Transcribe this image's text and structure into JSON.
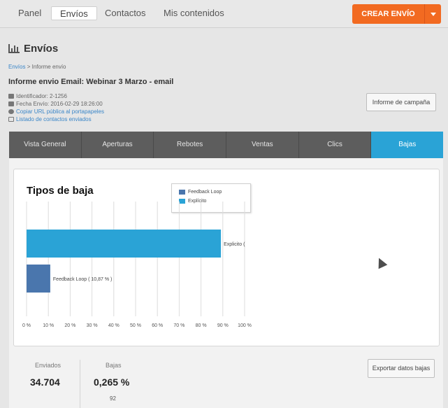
{
  "nav": {
    "items": [
      {
        "label": "Panel"
      },
      {
        "label": "Envíos"
      },
      {
        "label": "Contactos"
      },
      {
        "label": "Mis contenidos"
      }
    ],
    "create_label": "CREAR ENVÍO"
  },
  "header": {
    "title": "Envíos",
    "breadcrumb_link": "Envíos",
    "breadcrumb_sep": " > ",
    "breadcrumb_current": "Informe envío"
  },
  "report": {
    "title": "Informe envio Email: Webinar 3 Marzo - email",
    "identifier": "Identificador: 2-1256",
    "send_date": "Fecha Envío: 2016-02-29 18:26:00",
    "copy_url": "Copiar URL pública al portapapeles",
    "contact_list": "Listado de contactos enviados",
    "campaign_button": "Informe de campaña"
  },
  "tabs": [
    {
      "label": "Vista General"
    },
    {
      "label": "Aperturas"
    },
    {
      "label": "Rebotes"
    },
    {
      "label": "Ventas"
    },
    {
      "label": "Clics"
    },
    {
      "label": "Bajas"
    }
  ],
  "colors": {
    "accent": "#f26a21",
    "tab_active": "#2aa3d6",
    "tab_bg": "#5d5d5d",
    "explicit": "#2aa3d6",
    "feedback": "#4a76ad"
  },
  "chart_data": {
    "type": "bar",
    "orientation": "horizontal",
    "title": "Tipos de baja",
    "legend": [
      {
        "name": "Feedback Loop",
        "color": "#4a76ad"
      },
      {
        "name": "Explícito",
        "color": "#2aa3d6"
      }
    ],
    "categories": [
      "Explícito",
      "Feedback Loop"
    ],
    "values": [
      89.13,
      10.87
    ],
    "bar_labels": [
      "Explicito (",
      "Feedback Loop ( 10,87 % )"
    ],
    "xlim": [
      0,
      100
    ],
    "x_ticks": [
      "0 %",
      "10 %",
      "20 %",
      "30 %",
      "40 %",
      "50 %",
      "60 %",
      "70 %",
      "80 %",
      "90 %",
      "100 %"
    ],
    "grid": true,
    "legend_position": "top"
  },
  "stats": {
    "sent_label": "Enviados",
    "sent_value": "34.704",
    "unsub_label": "Bajas",
    "unsub_value": "0,265 %",
    "unsub_count": "92",
    "export_button": "Exportar datos bajas"
  }
}
